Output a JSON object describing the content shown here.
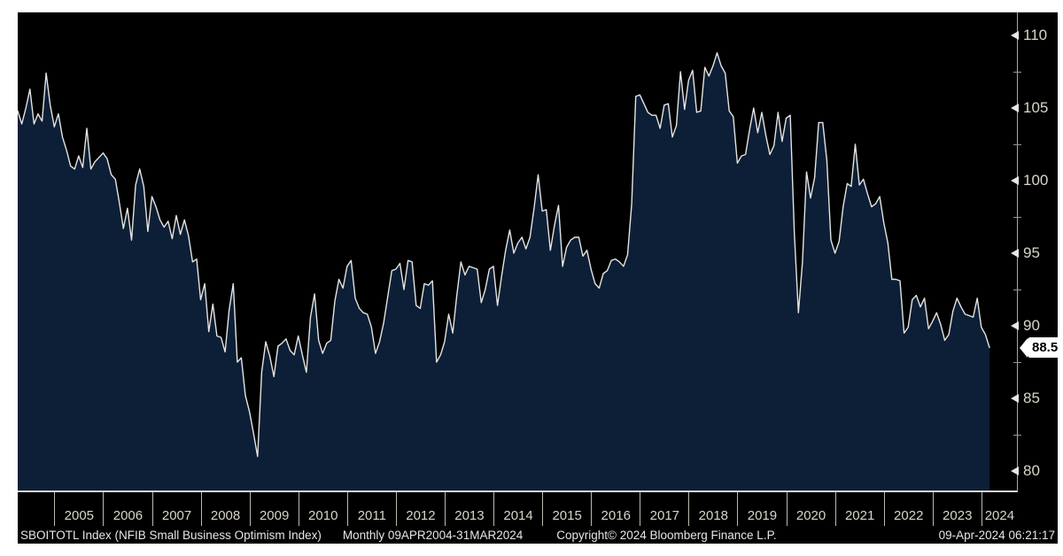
{
  "chart": {
    "panel_bg": "#000000",
    "area_fill": "#0d1f37",
    "line_color": "#e4e4e2",
    "axis_color": "#aaa89f",
    "label_color": "#d9d5c9",
    "last_value_badge": {
      "value": "88.5",
      "bg": "#ffffff",
      "text_color": "#000000"
    }
  },
  "y_axis": {
    "major_ticks": [
      110,
      105,
      100,
      95,
      90,
      85,
      80
    ],
    "minor_ticks": [
      107.5,
      102.5,
      97.5,
      92.5,
      87.5,
      82.5
    ]
  },
  "x_axis": {
    "years": [
      "2005",
      "2006",
      "2007",
      "2008",
      "2009",
      "2010",
      "2011",
      "2012",
      "2013",
      "2014",
      "2015",
      "2016",
      "2017",
      "2018",
      "2019",
      "2020",
      "2021",
      "2022",
      "2023",
      "2024"
    ]
  },
  "footer": {
    "left": "SBOITOTL Index (NFIB Small Business Optimism Index)",
    "range": "Monthly 09APR2004-31MAR2024",
    "copyright": "Copyright© 2024 Bloomberg Finance L.P.",
    "timestamp": "09-Apr-2024 06:21:17"
  },
  "chart_data": {
    "type": "area",
    "title": "SBOITOTL Index (NFIB Small Business Optimism Index)",
    "frequency": "Monthly",
    "period": "09APR2004-31MAR2024",
    "x_start": "2004-04",
    "x_end": "2024-03",
    "x_unit": "month",
    "ylim": [
      80,
      110
    ],
    "y_axis_side": "right",
    "grid": false,
    "last_value": 88.5,
    "series": [
      {
        "name": "SBOITOTL Index",
        "values": [
          104.8,
          103.9,
          105.0,
          106.3,
          103.9,
          104.6,
          104.1,
          107.4,
          105.2,
          103.7,
          104.6,
          103.0,
          102.1,
          101.0,
          100.8,
          101.7,
          100.9,
          103.6,
          100.8,
          101.3,
          101.6,
          101.9,
          101.5,
          100.4,
          100.1,
          98.5,
          96.7,
          98.1,
          95.9,
          99.7,
          100.8,
          99.6,
          96.5,
          98.9,
          98.2,
          97.3,
          96.8,
          97.2,
          96.0,
          97.6,
          96.3,
          97.3,
          96.2,
          94.4,
          94.6,
          91.8,
          92.9,
          89.6,
          91.5,
          89.3,
          89.2,
          88.2,
          91.1,
          92.9,
          87.5,
          87.8,
          85.2,
          84.1,
          82.6,
          81.0,
          86.8,
          88.9,
          87.9,
          86.5,
          88.6,
          88.8,
          89.1,
          88.3,
          88.0,
          89.3,
          88.0,
          86.8,
          90.6,
          92.2,
          89.0,
          88.1,
          88.8,
          89.0,
          91.7,
          93.2,
          92.6,
          94.1,
          94.5,
          91.9,
          91.2,
          90.9,
          90.8,
          89.9,
          88.1,
          88.9,
          90.2,
          92.0,
          93.8,
          93.9,
          94.3,
          92.5,
          94.5,
          94.4,
          91.4,
          91.2,
          92.9,
          92.8,
          93.1,
          87.5,
          88.0,
          88.9,
          90.8,
          89.5,
          92.1,
          94.4,
          93.5,
          94.1,
          94.0,
          93.9,
          91.6,
          92.5,
          93.9,
          94.1,
          91.4,
          93.4,
          95.2,
          96.6,
          95.0,
          95.7,
          96.1,
          95.3,
          96.1,
          98.1,
          100.4,
          97.9,
          98.0,
          95.2,
          96.9,
          98.3,
          94.1,
          95.4,
          95.9,
          96.1,
          96.1,
          94.8,
          95.2,
          93.9,
          92.9,
          92.6,
          93.6,
          93.8,
          94.5,
          94.6,
          94.4,
          94.1,
          94.9,
          98.4,
          105.8,
          105.9,
          105.3,
          104.7,
          104.5,
          104.5,
          103.6,
          105.2,
          105.3,
          103.0,
          103.8,
          107.5,
          104.9,
          106.9,
          107.6,
          104.7,
          104.8,
          107.8,
          107.2,
          107.9,
          108.8,
          107.9,
          107.4,
          104.8,
          104.4,
          101.2,
          101.7,
          101.8,
          103.5,
          105.0,
          103.3,
          104.7,
          103.1,
          101.8,
          102.4,
          104.7,
          102.7,
          104.3,
          104.5,
          96.4,
          90.9,
          94.4,
          100.6,
          98.8,
          100.2,
          104.0,
          104.0,
          101.4,
          95.9,
          95.0,
          95.8,
          98.2,
          99.8,
          99.6,
          102.5,
          99.7,
          100.1,
          99.1,
          98.2,
          98.4,
          98.9,
          97.1,
          95.7,
          93.2,
          93.2,
          93.1,
          89.5,
          89.9,
          91.8,
          92.1,
          91.3,
          91.9,
          89.8,
          90.3,
          90.9,
          90.1,
          89.0,
          89.4,
          91.0,
          91.9,
          91.3,
          90.8,
          90.7,
          90.6,
          91.9,
          89.9,
          89.4,
          88.5
        ]
      }
    ]
  }
}
